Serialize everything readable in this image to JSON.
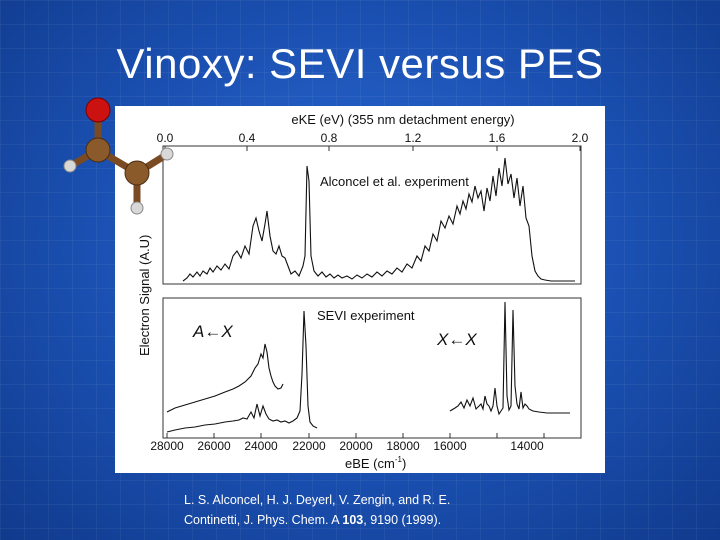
{
  "slide": {
    "title": "Vinoxy: SEVI versus PES"
  },
  "figure": {
    "top_axis_label": "eKE (eV)  (355 nm detachment energy)",
    "top_ticks": [
      "0.0",
      "0.4",
      "0.8",
      "1.2",
      "1.6",
      "2.0"
    ],
    "bottom_axis_label": "eBE (cm",
    "bottom_axis_superscript": "-1",
    "bottom_axis_close": ")",
    "bottom_ticks": [
      "28000",
      "26000",
      "24000",
      "22000",
      "20000",
      "18000",
      "16000",
      "14000"
    ],
    "y_axis_label": "Electron Signal (A.U)",
    "upper_panel_label": "Alconcel et al. experiment",
    "lower_panel_label": "SEVI experiment",
    "band_label_left": "A←X",
    "band_label_right": "X←X"
  },
  "citation": {
    "line1": "L. S. Alconcel, H. J. Deyerl, V. Zengin, and R. E.",
    "line2_prefix": "Continetti, J. Phys. Chem. A ",
    "line2_volume": "103",
    "line2_suffix": ", 9190 (1999)."
  },
  "colors": {
    "background": "#1a4fb0",
    "molecule_oxygen": "#cc1111",
    "molecule_carbon": "#8b5a2b",
    "molecule_hydrogen": "#d8d8d8"
  }
}
